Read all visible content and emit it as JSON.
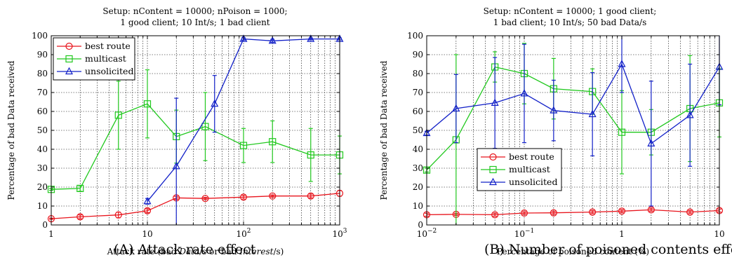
{
  "chart_data": [
    {
      "type": "line",
      "title_lines": [
        "Setup: nContent = 10000; nPoison = 1000;",
        "1 good client; 10 Int/s; 1 bad client"
      ],
      "xlabel_parts": [
        "Attack rate (bad ",
        "Data",
        "/s or bad ",
        "Interest",
        "/s)"
      ],
      "ylabel": "Percentage of bad Data received",
      "xscale": "log",
      "xlim": [
        1,
        1000
      ],
      "ylim": [
        0,
        100
      ],
      "yticks": [
        0,
        10,
        20,
        30,
        40,
        50,
        60,
        70,
        80,
        90,
        100
      ],
      "xticks": [
        {
          "v": 1,
          "b": "1",
          "e": ""
        },
        {
          "v": 10,
          "b": "10",
          "e": ""
        },
        {
          "v": 100,
          "b": "10",
          "e": "2"
        },
        {
          "v": 1000,
          "b": "10",
          "e": "3"
        }
      ],
      "grid": true,
      "legend_position": "top-left",
      "caption": "(A) Attack rate effect",
      "series": [
        {
          "name": "best route",
          "color": "#e8141c",
          "marker": "circle",
          "x": [
            1,
            2,
            5,
            10,
            20,
            40,
            100,
            200,
            500,
            1000
          ],
          "y": [
            3.3,
            4.3,
            5.3,
            7.5,
            14.3,
            14,
            14.7,
            15.3,
            15.3,
            16.7
          ],
          "err": [
            0.3,
            1,
            1.5,
            1,
            0.8,
            0.6,
            1,
            0.6,
            1,
            1.5
          ]
        },
        {
          "name": "multicast",
          "color": "#21c81e",
          "marker": "square",
          "x": [
            1,
            2,
            5,
            10,
            20,
            40,
            100,
            200,
            500,
            1000
          ],
          "y": [
            18.8,
            19.3,
            58,
            64,
            46.7,
            52,
            42,
            44,
            37,
            37
          ],
          "err": [
            0.5,
            1.5,
            18,
            18,
            14,
            18,
            9,
            11,
            14,
            10
          ]
        },
        {
          "name": "unsolicited",
          "color": "#1220c8",
          "marker": "triangle",
          "x": [
            10,
            20,
            50,
            100,
            200,
            500,
            1000
          ],
          "y": [
            12.5,
            31,
            64,
            98.3,
            97.3,
            98.3,
            98.3
          ],
          "err": [
            1.5,
            36,
            15,
            0.6,
            0.8,
            0.5,
            0.5
          ]
        }
      ]
    },
    {
      "type": "line",
      "title_lines": [
        "Setup: nContent = 10000; 1 good client;",
        "1 bad client; 10 Int/s; 50 bad Data/s"
      ],
      "xlabel_parts": [
        "Percentage of poisoned content (%)"
      ],
      "ylabel": "Percentage of bad Data received",
      "xscale": "log",
      "xlim": [
        0.01,
        10
      ],
      "ylim": [
        0,
        100
      ],
      "yticks": [
        0,
        10,
        20,
        30,
        40,
        50,
        60,
        70,
        80,
        90,
        100
      ],
      "xticks": [
        {
          "v": 0.01,
          "b": "10",
          "e": "−2"
        },
        {
          "v": 0.1,
          "b": "10",
          "e": "−1"
        },
        {
          "v": 1,
          "b": "1",
          "e": ""
        },
        {
          "v": 10,
          "b": "10",
          "e": ""
        }
      ],
      "grid": true,
      "legend_position": "bottom-left",
      "caption": "(B) Number of poisoned contents effect",
      "series": [
        {
          "name": "best route",
          "color": "#e8141c",
          "marker": "circle",
          "x": [
            0.01,
            0.02,
            0.05,
            0.1,
            0.2,
            0.5,
            1,
            2,
            5,
            10
          ],
          "y": [
            5.4,
            5.6,
            5.4,
            6.3,
            6.4,
            6.8,
            7.3,
            8,
            6.8,
            7.6
          ],
          "err": [
            0.8,
            0.6,
            0.8,
            0.7,
            0.8,
            0.8,
            0.8,
            0.8,
            0.8,
            0.8
          ]
        },
        {
          "name": "multicast",
          "color": "#21c81e",
          "marker": "square",
          "x": [
            0.01,
            0.02,
            0.05,
            0.1,
            0.2,
            0.5,
            1,
            2,
            5,
            10
          ],
          "y": [
            29,
            45,
            83.5,
            80,
            72,
            70.5,
            49,
            49,
            61.5,
            64.5
          ],
          "err": [
            1,
            45,
            8,
            16,
            16,
            12,
            22,
            12,
            28,
            18
          ]
        },
        {
          "name": "unsolicited",
          "color": "#1220c8",
          "marker": "triangle",
          "x": [
            0.01,
            0.02,
            0.05,
            0.1,
            0.2,
            0.5,
            1,
            2,
            5,
            10
          ],
          "y": [
            48.5,
            61.5,
            64.5,
            69.5,
            60.5,
            58.5,
            85,
            43,
            58,
            83.5
          ],
          "err": [
            1,
            18,
            24,
            26,
            16,
            22,
            15,
            33,
            27,
            20
          ]
        }
      ]
    }
  ]
}
